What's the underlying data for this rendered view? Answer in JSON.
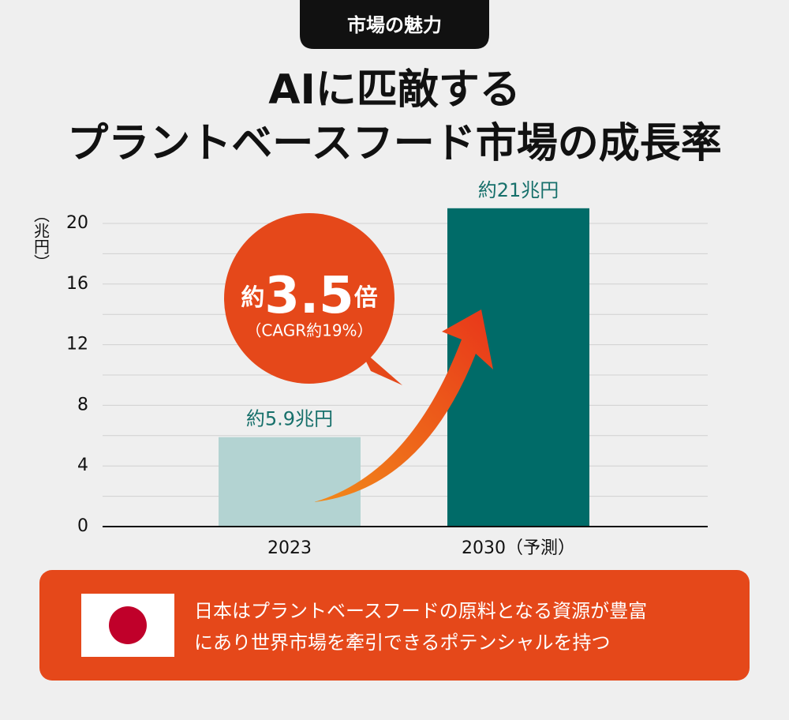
{
  "header": {
    "tag": "市場の魅力",
    "title": [
      "AIに匹敵する",
      "プラントベースフード市場の成長率"
    ]
  },
  "chart_data": {
    "type": "bar",
    "y_label": "（兆円）",
    "categories": [
      "2023",
      "2030（予測）"
    ],
    "values": [
      5.9,
      21
    ],
    "value_labels": [
      "約5.9兆円",
      "約21兆円"
    ],
    "colors": [
      "#b3d3d2",
      "#006b68"
    ],
    "label_color": "#17706b",
    "ylim": [
      0,
      21
    ],
    "yticks": [
      0,
      4,
      8,
      12,
      16,
      20
    ],
    "minor_yticks": [
      2,
      6,
      10,
      14,
      18
    ],
    "grid": true,
    "annotation": {
      "prefix": "約",
      "value": "3.5",
      "suffix": "倍",
      "note": "（CAGR約19%）"
    }
  },
  "footer": {
    "lines": [
      "日本はプラントベースフードの原料となる資源が豊富",
      "にあり世界市場を牽引できるポテンシャルを持つ"
    ]
  }
}
